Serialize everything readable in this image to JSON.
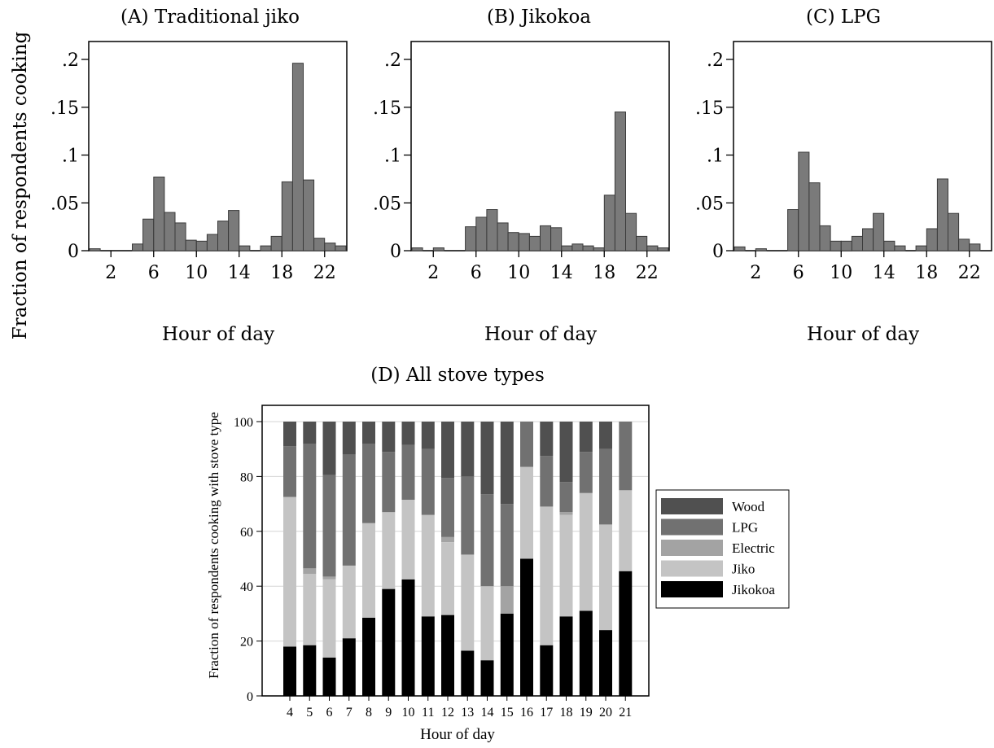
{
  "figure": {
    "shared_ylabel": "Fraction of respondents cooking"
  },
  "chart_data": [
    {
      "type": "bar",
      "title": "(A) Traditional jiko",
      "xlabel": "Hour of day",
      "ylabel": "Fraction of respondents cooking",
      "xlim": [
        0,
        24
      ],
      "ylim": [
        0,
        0.2
      ],
      "xticks": [
        2,
        6,
        10,
        14,
        18,
        22
      ],
      "yticks": [
        0,
        0.05,
        0.1,
        0.15,
        0.2
      ],
      "ytick_labels": [
        "0",
        ".05",
        ".1",
        ".15",
        ".2"
      ],
      "grid": false,
      "bar_color": "#7a7a7a",
      "x": [
        1,
        2,
        3,
        4,
        5,
        6,
        7,
        8,
        9,
        10,
        11,
        12,
        13,
        14,
        15,
        16,
        17,
        18,
        19,
        20,
        21,
        22,
        23,
        24
      ],
      "values": [
        0.002,
        0,
        0,
        0,
        0.007,
        0.033,
        0.077,
        0.04,
        0.029,
        0.011,
        0.01,
        0.017,
        0.031,
        0.042,
        0.005,
        0,
        0.005,
        0.015,
        0.072,
        0.196,
        0.074,
        0.013,
        0.008,
        0.005
      ]
    },
    {
      "type": "bar",
      "title": "(B) Jikokoa",
      "xlabel": "Hour of day",
      "ylabel": "Fraction of respondents cooking",
      "xlim": [
        0,
        24
      ],
      "ylim": [
        0,
        0.2
      ],
      "xticks": [
        2,
        6,
        10,
        14,
        18,
        22
      ],
      "yticks": [
        0,
        0.05,
        0.1,
        0.15,
        0.2
      ],
      "ytick_labels": [
        "0",
        ".05",
        ".1",
        ".15",
        ".2"
      ],
      "grid": false,
      "bar_color": "#7a7a7a",
      "x": [
        1,
        2,
        3,
        4,
        5,
        6,
        7,
        8,
        9,
        10,
        11,
        12,
        13,
        14,
        15,
        16,
        17,
        18,
        19,
        20,
        21,
        22,
        23,
        24
      ],
      "values": [
        0.003,
        0,
        0.003,
        0,
        0,
        0.025,
        0.035,
        0.043,
        0.029,
        0.019,
        0.018,
        0.015,
        0.026,
        0.024,
        0.005,
        0.007,
        0.005,
        0.003,
        0.058,
        0.145,
        0.039,
        0.015,
        0.005,
        0.003
      ]
    },
    {
      "type": "bar",
      "title": "(C) LPG",
      "xlabel": "Hour of day",
      "ylabel": "Fraction of respondents cooking",
      "xlim": [
        0,
        24
      ],
      "ylim": [
        0,
        0.2
      ],
      "xticks": [
        2,
        6,
        10,
        14,
        18,
        22
      ],
      "yticks": [
        0,
        0.05,
        0.1,
        0.15,
        0.2
      ],
      "ytick_labels": [
        "0",
        ".05",
        ".1",
        ".15",
        ".2"
      ],
      "grid": false,
      "bar_color": "#7a7a7a",
      "x": [
        1,
        2,
        3,
        4,
        5,
        6,
        7,
        8,
        9,
        10,
        11,
        12,
        13,
        14,
        15,
        16,
        17,
        18,
        19,
        20,
        21,
        22,
        23
      ],
      "values": [
        0.004,
        0,
        0.002,
        0,
        0,
        0.043,
        0.103,
        0.071,
        0.026,
        0.01,
        0.01,
        0.015,
        0.023,
        0.039,
        0.01,
        0.005,
        0,
        0.005,
        0.023,
        0.075,
        0.039,
        0.012,
        0.007
      ]
    },
    {
      "type": "stacked-bar",
      "title": "(D) All stove types",
      "xlabel": "Hour of day",
      "ylabel": "Fraction of respondents cooking with stove type",
      "ylim": [
        0,
        100
      ],
      "yticks": [
        0,
        20,
        40,
        60,
        80,
        100
      ],
      "grid": true,
      "legend_position": "right",
      "categories": [
        "4",
        "5",
        "6",
        "7",
        "8",
        "9",
        "10",
        "11",
        "12",
        "13",
        "14",
        "15",
        "16",
        "17",
        "18",
        "19",
        "20",
        "21"
      ],
      "series": [
        {
          "name": "Jikokoa",
          "color": "#000000",
          "values": [
            18,
            18.5,
            14,
            21,
            28.5,
            39,
            42.5,
            29,
            29.5,
            16.5,
            13,
            30,
            50,
            18.5,
            29,
            31,
            24,
            45.5
          ]
        },
        {
          "name": "Jiko",
          "color": "#c4c4c4",
          "values": [
            54.5,
            26,
            28.5,
            26.5,
            34.5,
            28,
            29,
            37,
            26.5,
            35,
            27,
            0,
            33.5,
            50.5,
            37,
            43,
            38.5,
            29.5
          ]
        },
        {
          "name": "Electric",
          "color": "#a3a3a3",
          "values": [
            0,
            2,
            1,
            0,
            0,
            0,
            0,
            0,
            2,
            0,
            0,
            10,
            0,
            0,
            1,
            0,
            0,
            0
          ]
        },
        {
          "name": "LPG",
          "color": "#717171",
          "values": [
            18.5,
            45.5,
            37,
            40.5,
            29,
            22,
            20,
            24,
            21.5,
            28.5,
            33.5,
            30,
            16.5,
            18.5,
            11,
            15,
            27.5,
            25
          ]
        },
        {
          "name": "Wood",
          "color": "#505050",
          "values": [
            9,
            8,
            19.5,
            12,
            8,
            11,
            8.5,
            10,
            20.5,
            20,
            26.5,
            30,
            0,
            12.5,
            22,
            11,
            10,
            0
          ]
        }
      ]
    }
  ]
}
